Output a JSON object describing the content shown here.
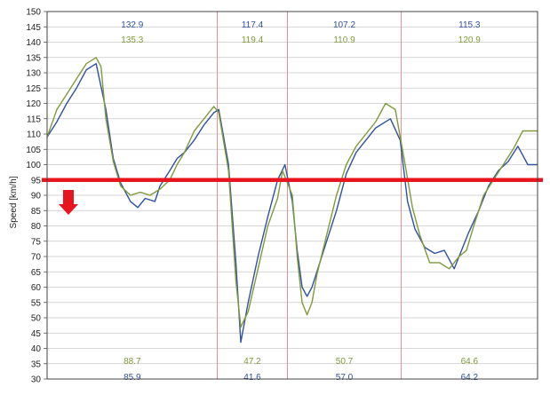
{
  "chart_data": {
    "type": "line",
    "ylabel": "Speed [km/h]",
    "ylim": [
      30,
      150
    ],
    "yticks": [
      30,
      35,
      40,
      45,
      50,
      55,
      60,
      65,
      70,
      75,
      80,
      85,
      90,
      95,
      100,
      105,
      110,
      115,
      120,
      125,
      130,
      135,
      140,
      145,
      150
    ],
    "xlim": [
      0,
      100
    ],
    "section_dividers": [
      34.7,
      49.0,
      72.2
    ],
    "reference_line": {
      "y": 95,
      "color": "#e8141e"
    },
    "series": [
      {
        "color": "#2f52a0",
        "x": [
          0,
          2,
          4,
          6,
          8,
          10,
          12,
          13.5,
          15,
          17,
          18.5,
          20,
          22,
          23,
          25,
          26.5,
          28,
          30,
          32,
          34,
          35,
          37,
          38.5,
          39.5,
          41,
          43,
          45,
          47,
          48.5,
          50,
          51,
          52,
          53,
          54,
          55,
          57,
          59,
          61,
          63,
          65,
          67,
          70,
          72,
          73.5,
          75,
          77,
          79,
          81,
          83,
          84.5,
          86,
          88,
          90,
          92,
          94,
          96,
          98,
          100
        ],
        "y": [
          109,
          114,
          120,
          125,
          131,
          133,
          118,
          102,
          94,
          88,
          86,
          89,
          88,
          93,
          98,
          102,
          104,
          108,
          113,
          117,
          118,
          100,
          68,
          42,
          55,
          70,
          83,
          95,
          100,
          88,
          72,
          60,
          57,
          60,
          65,
          75,
          85,
          97,
          104,
          108,
          112,
          115,
          108,
          88,
          79,
          73,
          71,
          72,
          66,
          72,
          78,
          85,
          93,
          98,
          101,
          106,
          100,
          100
        ]
      },
      {
        "color": "#7f9a3a",
        "x": [
          0,
          2,
          4,
          6,
          8,
          10,
          11,
          12,
          13.5,
          15,
          17,
          19,
          21,
          23,
          25,
          26.5,
          28,
          30,
          32,
          34,
          35,
          37,
          38.5,
          39.5,
          41,
          43,
          45,
          47,
          48,
          50,
          51,
          52,
          53,
          54,
          55,
          57,
          59,
          61,
          63,
          65,
          67,
          69,
          71,
          73,
          74.5,
          76,
          78,
          80,
          82,
          84,
          85.5,
          87,
          89,
          91,
          93,
          95,
          97,
          100
        ],
        "y": [
          109,
          118,
          123,
          128,
          133,
          135,
          132,
          115,
          101,
          93,
          90,
          91,
          90,
          92,
          95,
          100,
          104,
          111,
          115,
          119,
          117,
          98,
          62,
          47,
          52,
          66,
          80,
          89,
          98,
          90,
          70,
          55,
          51,
          55,
          64,
          77,
          90,
          100,
          106,
          110,
          114,
          120,
          118,
          100,
          86,
          77,
          68,
          68,
          66,
          70,
          72,
          80,
          90,
          95,
          100,
          105,
          111,
          111
        ]
      }
    ],
    "annotations": {
      "top_blue": [
        "132.9",
        "117.4",
        "107.2",
        "115.3"
      ],
      "top_green": [
        "135.3",
        "119.4",
        "110.9",
        "120.9"
      ],
      "bottom_green": [
        "88.7",
        "47.2",
        "50.7",
        "64.6"
      ],
      "bottom_blue": [
        "85.9",
        "41.6",
        "57.0",
        "64.2"
      ]
    }
  }
}
